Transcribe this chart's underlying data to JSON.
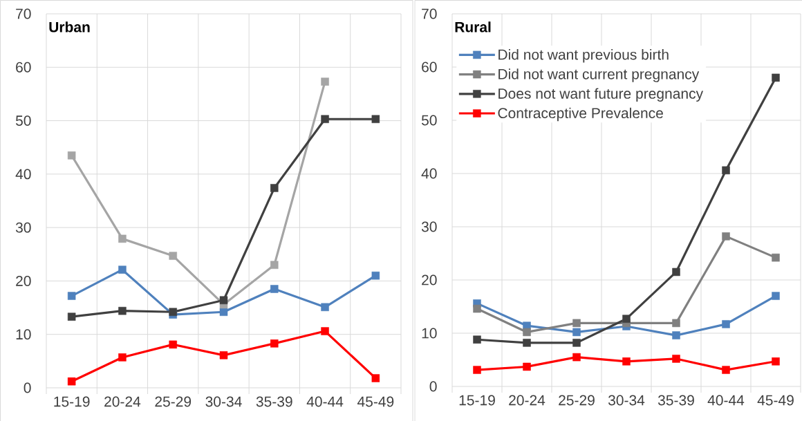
{
  "chart_data": [
    {
      "type": "line",
      "title": "Urban",
      "categories": [
        "15-19",
        "20-24",
        "25-29",
        "30-34",
        "35-39",
        "40-44",
        "45-49"
      ],
      "series": [
        {
          "color": "#4f81bd",
          "values": [
            17.2,
            22.1,
            13.7,
            14.2,
            18.5,
            15.1,
            21.0
          ]
        },
        {
          "color": "#a5a5a5",
          "values": [
            43.5,
            27.9,
            24.7,
            15.6,
            23.0,
            57.3,
            null
          ]
        },
        {
          "color": "#404040",
          "values": [
            13.3,
            14.4,
            14.2,
            16.4,
            37.4,
            50.3,
            50.3
          ]
        },
        {
          "color": "#ff0000",
          "values": [
            1.2,
            5.7,
            8.1,
            6.1,
            8.3,
            10.6,
            1.8
          ]
        }
      ],
      "ylim": [
        0,
        70
      ],
      "yticks": [
        0,
        10,
        20,
        30,
        40,
        50,
        60,
        70
      ],
      "grid": true,
      "marker": "square",
      "line_style": "solid"
    },
    {
      "type": "line",
      "title": "Rural",
      "categories": [
        "15-19",
        "20-24",
        "25-29",
        "30-34",
        "35-39",
        "40-44",
        "45-49"
      ],
      "series": [
        {
          "name": "Did not want previous birth",
          "color": "#4f81bd",
          "values": [
            15.6,
            11.4,
            10.2,
            11.3,
            9.6,
            11.7,
            17.0
          ]
        },
        {
          "name": "Did not want current pregnancy",
          "color": "#808080",
          "values": [
            14.6,
            10.2,
            11.9,
            11.9,
            11.9,
            28.2,
            24.2
          ]
        },
        {
          "name": "Does not want future pregnancy",
          "color": "#404040",
          "values": [
            8.8,
            8.2,
            8.2,
            12.7,
            21.5,
            40.6,
            58.0
          ]
        },
        {
          "name": "Contraceptive Prevalence",
          "color": "#ff0000",
          "values": [
            3.1,
            3.7,
            5.5,
            4.7,
            5.2,
            3.1,
            4.7
          ]
        }
      ],
      "ylim": [
        0,
        70
      ],
      "yticks": [
        0,
        10,
        20,
        30,
        40,
        50,
        60,
        70
      ],
      "grid": true,
      "marker": "square",
      "line_style": "solid",
      "legend": "top left"
    }
  ]
}
